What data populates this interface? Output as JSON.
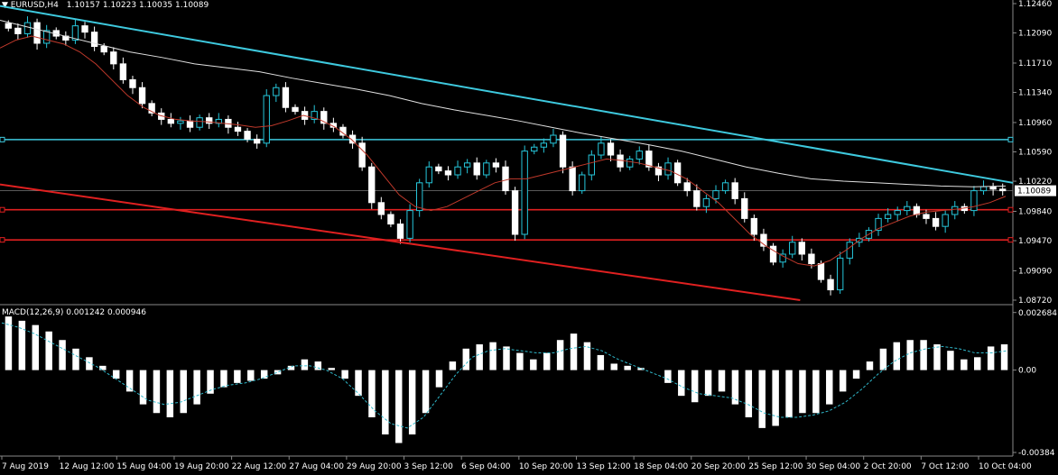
{
  "colors": {
    "background": "#000000",
    "candle_up": "#26c6da",
    "candle_down": "#ffffff",
    "ma_fast": "#c0392b",
    "ma_slow": "#e0e0e0",
    "trend_resistance": "#3ec9de",
    "trend_support": "#e02020",
    "hline_cyan": "#3ec9de",
    "hline_red": "#e02020",
    "macd_hist": "#ffffff",
    "macd_signal": "#2fb7c9",
    "price_label_bg": "#ffffff"
  },
  "header": {
    "symbol_label": "▼ EURUSD,H4",
    "ohlc": "1.10157 1.10223 1.10035 1.10089"
  },
  "macd_header": "MACD(12,26,9) 0.001242 0.000946",
  "current_price_label": "1.10089",
  "chart_data": [
    {
      "type": "candlestick",
      "title": "EURUSD,H4",
      "ylim": [
        1.0872,
        1.1246
      ],
      "y_ticks": [
        "1.12460",
        "1.12090",
        "1.11710",
        "1.11340",
        "1.10960",
        "1.10590",
        "1.10220",
        "1.09840",
        "1.09470",
        "1.09090",
        "1.08720"
      ],
      "y_tick_values": [
        1.1246,
        1.1209,
        1.1171,
        1.1134,
        1.1096,
        1.1059,
        1.1022,
        1.0984,
        1.0947,
        1.0909,
        1.0872
      ],
      "x_labels": [
        "7 Aug 2019",
        "12 Aug 12:00",
        "15 Aug 04:00",
        "19 Aug 20:00",
        "22 Aug 12:00",
        "27 Aug 04:00",
        "29 Aug 20:00",
        "3 Sep 12:00",
        "6 Sep 04:00",
        "10 Sep 20:00",
        "13 Sep 12:00",
        "18 Sep 04:00",
        "20 Sep 20:00",
        "25 Sep 12:00",
        "30 Sep 04:00",
        "2 Oct 20:00",
        "7 Oct 12:00",
        "10 Oct 04:00"
      ],
      "close_series": [
        1.1215,
        1.1208,
        1.1222,
        1.1196,
        1.1212,
        1.1205,
        1.12,
        1.1218,
        1.121,
        1.1192,
        1.1185,
        1.117,
        1.115,
        1.114,
        1.112,
        1.1108,
        1.11,
        1.1095,
        1.1098,
        1.109,
        1.1102,
        1.1095,
        1.11,
        1.109,
        1.1085,
        1.1075,
        1.107,
        1.113,
        1.114,
        1.1115,
        1.111,
        1.11,
        1.111,
        1.1095,
        1.109,
        1.108,
        1.107,
        1.104,
        1.0995,
        1.098,
        1.0968,
        1.095,
        1.0985,
        1.102,
        1.104,
        1.1035,
        1.103,
        1.104,
        1.1045,
        1.103,
        1.1045,
        1.104,
        1.101,
        1.0955,
        1.106,
        1.1065,
        1.107,
        1.108,
        1.104,
        1.101,
        1.103,
        1.1055,
        1.107,
        1.1055,
        1.104,
        1.105,
        1.106,
        1.104,
        1.103,
        1.1045,
        1.102,
        1.101,
        1.099,
        1.1,
        1.101,
        1.102,
        1.1,
        1.0975,
        1.0955,
        1.094,
        1.092,
        1.093,
        1.0945,
        1.093,
        1.0918,
        1.0898,
        1.0885,
        1.0925,
        1.0945,
        1.095,
        1.096,
        1.0975,
        1.098,
        1.0985,
        1.099,
        1.098,
        1.0975,
        1.0965,
        1.098,
        1.099,
        1.0985,
        1.101,
        1.1015,
        1.1012,
        1.101
      ],
      "ma_fast": [
        1.119,
        1.12,
        1.1205,
        1.12,
        1.1195,
        1.1185,
        1.117,
        1.115,
        1.113,
        1.1115,
        1.1105,
        1.11,
        1.1098,
        1.1097,
        1.1095,
        1.1093,
        1.109,
        1.1092,
        1.1098,
        1.1105,
        1.11,
        1.109,
        1.1075,
        1.1055,
        1.103,
        1.1005,
        1.099,
        1.0985,
        1.099,
        1.1,
        1.101,
        1.102,
        1.1025,
        1.1025,
        1.103,
        1.1035,
        1.104,
        1.1045,
        1.105,
        1.1048,
        1.1045,
        1.104,
        1.1035,
        1.1025,
        1.101,
        1.0995,
        1.0975,
        1.0955,
        1.094,
        1.0928,
        1.0918,
        1.0915,
        1.0922,
        1.0935,
        1.095,
        1.0962,
        1.097,
        1.0978,
        1.0983,
        1.0985,
        1.0987,
        1.099,
        1.0995,
        1.1003
      ],
      "ma_slow": [
        1.1225,
        1.1215,
        1.1205,
        1.1195,
        1.1185,
        1.1178,
        1.117,
        1.1165,
        1.116,
        1.1152,
        1.1145,
        1.1138,
        1.113,
        1.112,
        1.1112,
        1.1105,
        1.1098,
        1.109,
        1.1082,
        1.1075,
        1.1068,
        1.106,
        1.105,
        1.104,
        1.1032,
        1.1025,
        1.1022,
        1.102,
        1.1018,
        1.1016,
        1.1015,
        1.1016
      ],
      "horizontal_levels": [
        1.10745,
        1.0986,
        1.0948
      ],
      "trend_resistance": {
        "from": [
          0,
          1.1243
        ],
        "to": [
          1,
          1.102
        ]
      },
      "trend_support": {
        "from": [
          0,
          1.1018
        ],
        "to": [
          0.79,
          1.0872
        ]
      }
    },
    {
      "type": "bar",
      "title": "MACD(12,26,9) 0.001242 0.000946",
      "ylim": [
        -0.00384,
        0.00284
      ],
      "y_ticks": [
        "0.002684",
        "0.00",
        "-0.00384"
      ],
      "y_tick_values": [
        0.002684,
        0.0,
        -0.00384
      ],
      "histogram": [
        0.0025,
        0.0023,
        0.0021,
        0.0018,
        0.0014,
        0.001,
        0.0006,
        0.0002,
        -0.0004,
        -0.001,
        -0.0016,
        -0.002,
        -0.0022,
        -0.002,
        -0.0016,
        -0.0011,
        -0.0008,
        -0.0006,
        -0.0005,
        -0.0004,
        -0.0002,
        0.0002,
        0.0005,
        0.0004,
        0.0001,
        -0.0004,
        -0.0012,
        -0.0022,
        -0.003,
        -0.0034,
        -0.003,
        -0.002,
        -0.0008,
        0.0004,
        0.001,
        0.0012,
        0.0013,
        0.0011,
        0.0008,
        0.0005,
        0.0008,
        0.0014,
        0.0017,
        0.0013,
        0.0007,
        0.0003,
        0.0002,
        0.0001,
        0.0,
        -0.0006,
        -0.0012,
        -0.0015,
        -0.0012,
        -0.001,
        -0.0016,
        -0.0022,
        -0.0027,
        -0.0026,
        -0.0022,
        -0.002,
        -0.002,
        -0.0016,
        -0.001,
        -0.0004,
        0.0004,
        0.001,
        0.0013,
        0.0014,
        0.0014,
        0.0012,
        0.0009,
        0.0005,
        0.0006,
        0.0011,
        0.0012
      ],
      "signal": [
        0.0022,
        0.002,
        0.0017,
        0.0013,
        0.0009,
        0.0005,
        0.0001,
        -0.0004,
        -0.0009,
        -0.0014,
        -0.0016,
        -0.0015,
        -0.0012,
        -0.0009,
        -0.0007,
        -0.0006,
        -0.0004,
        -0.0001,
        0.0002,
        0.0002,
        0.0,
        -0.0004,
        -0.0011,
        -0.0019,
        -0.0025,
        -0.0027,
        -0.0022,
        -0.0012,
        -0.0002,
        0.0006,
        0.0009,
        0.001,
        0.0009,
        0.0008,
        0.0008,
        0.001,
        0.0011,
        0.0009,
        0.0005,
        0.0002,
        -0.0001,
        -0.0004,
        -0.0008,
        -0.0011,
        -0.0012,
        -0.0013,
        -0.0016,
        -0.002,
        -0.0022,
        -0.0022,
        -0.0021,
        -0.0019,
        -0.0015,
        -0.0009,
        -0.0002,
        0.0004,
        0.0008,
        0.001,
        0.0011,
        0.001,
        0.0008,
        0.0008,
        0.0009
      ]
    }
  ]
}
